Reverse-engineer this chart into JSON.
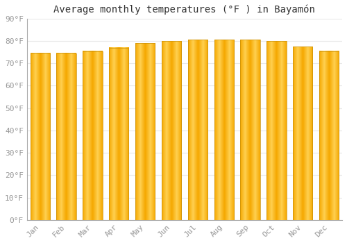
{
  "title": "Average monthly temperatures (°F ) in Bayamón",
  "months": [
    "Jan",
    "Feb",
    "Mar",
    "Apr",
    "May",
    "Jun",
    "Jul",
    "Aug",
    "Sep",
    "Oct",
    "Nov",
    "Dec"
  ],
  "values": [
    74.5,
    74.5,
    75.5,
    77.0,
    79.0,
    80.0,
    80.5,
    80.5,
    80.5,
    80.0,
    77.5,
    75.5
  ],
  "bar_color_center": "#FFD050",
  "bar_color_edge": "#F5A800",
  "background_color": "#FFFFFF",
  "grid_color": "#E8E8E8",
  "ylim": [
    0,
    90
  ],
  "yticks": [
    0,
    10,
    20,
    30,
    40,
    50,
    60,
    70,
    80,
    90
  ],
  "title_fontsize": 10,
  "tick_fontsize": 8,
  "title_color": "#333333",
  "tick_color": "#999999",
  "font_family": "monospace",
  "bar_width": 0.75
}
